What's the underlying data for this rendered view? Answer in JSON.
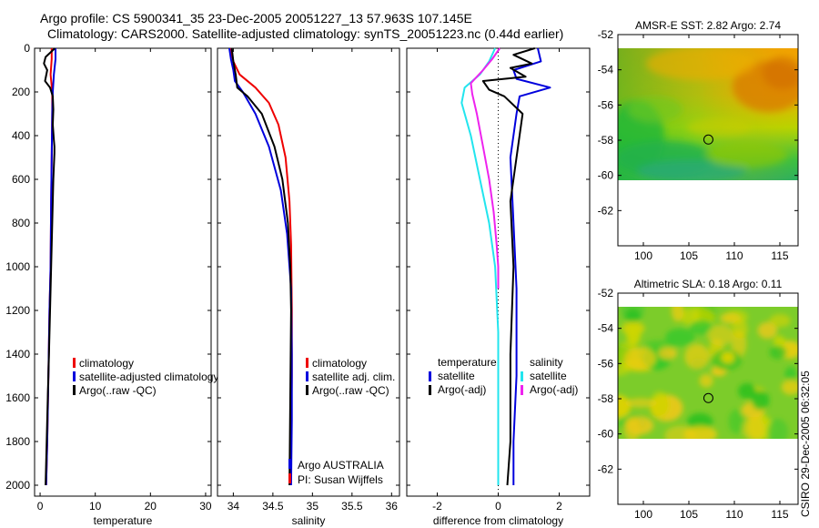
{
  "title_line1": "Argo profile: CS 5900341_35 23-Dec-2005 20051227_13 57.963S 107.145E",
  "title_line2": "Climatology: CARS2000. Satellite-adjusted climatology: synTS_20051223.nc (0.44d earlier)",
  "side_label": "CSIRO 29-Dec-2005 06:32:05",
  "colors": {
    "red": "#ee0000",
    "blue": "#0000dd",
    "black": "#000000",
    "cyan": "#22e5ee",
    "magenta": "#ee22ee"
  },
  "chart_data": [
    {
      "type": "line",
      "xlabel": "temperature",
      "xlim": [
        -1,
        31
      ],
      "ylim": [
        0,
        2050
      ],
      "y_reversed": true,
      "xticks": [
        0,
        10,
        20,
        30
      ],
      "yticks": [
        0,
        200,
        400,
        600,
        800,
        1000,
        1200,
        1400,
        1600,
        1800,
        2000
      ],
      "legend": [
        "climatology",
        "satellite-adjusted climatology",
        "Argo(..raw -QC)"
      ],
      "series": [
        {
          "name": "climatology",
          "color": "red",
          "x": [
            2.1,
            2.1,
            1.9,
            2.2,
            2.2,
            2.1,
            2.0,
            1.9,
            1.7,
            1.5,
            1.3,
            1.1
          ],
          "y": [
            0,
            50,
            120,
            200,
            300,
            500,
            700,
            1000,
            1200,
            1500,
            1800,
            2000
          ]
        },
        {
          "name": "satellite-adjusted climatology",
          "color": "blue",
          "x": [
            2.8,
            2.8,
            2.5,
            2.3,
            2.2,
            2.1,
            2.0,
            1.9,
            1.7,
            1.5,
            1.3,
            1.1
          ],
          "y": [
            0,
            50,
            120,
            200,
            300,
            500,
            700,
            1000,
            1200,
            1500,
            1800,
            2000
          ]
        },
        {
          "name": "Argo(..raw -QC)",
          "color": "black",
          "x": [
            2.7,
            1.0,
            0.7,
            1.3,
            0.9,
            1.8,
            2.3,
            2.4,
            2.3,
            2.5,
            2.6,
            2.6,
            2.4,
            2.2,
            2.0,
            1.8,
            1.6,
            1.4,
            1.2,
            1.0
          ],
          "y": [
            0,
            40,
            70,
            100,
            150,
            180,
            220,
            280,
            350,
            420,
            450,
            480,
            600,
            800,
            1000,
            1200,
            1400,
            1600,
            1800,
            2000
          ]
        }
      ]
    },
    {
      "type": "line",
      "xlabel": "salinity",
      "xlim": [
        33.8,
        36.1
      ],
      "ylim": [
        0,
        2050
      ],
      "y_reversed": true,
      "xticks": [
        34,
        34.5,
        35,
        35.5,
        36
      ],
      "legend": [
        "climatology",
        "satellite adj. clim.",
        "Argo(..raw -QC)"
      ],
      "annotations": [
        "Argo AUSTRALIA",
        "PI: Susan Wijffels"
      ],
      "series": [
        {
          "name": "climatology",
          "color": "red",
          "x": [
            33.96,
            34.0,
            34.08,
            34.28,
            34.45,
            34.57,
            34.66,
            34.71,
            34.73,
            34.74,
            34.74,
            34.73,
            34.72
          ],
          "y": [
            0,
            60,
            120,
            180,
            250,
            350,
            500,
            700,
            900,
            1200,
            1500,
            1800,
            2000
          ]
        },
        {
          "name": "satellite adj. clim.",
          "color": "blue",
          "x": [
            33.95,
            33.97,
            34.0,
            34.02,
            34.12,
            34.28,
            34.45,
            34.6,
            34.68,
            34.73,
            34.74,
            34.74,
            34.73
          ],
          "y": [
            0,
            50,
            100,
            150,
            200,
            300,
            450,
            650,
            850,
            1100,
            1400,
            1700,
            2000
          ]
        },
        {
          "name": "Argo(..raw -QC)",
          "color": "black",
          "x": [
            33.98,
            34.0,
            34.03,
            34.05,
            34.18,
            34.36,
            34.52,
            34.62,
            34.69,
            34.72,
            34.73,
            34.72,
            34.71
          ],
          "y": [
            0,
            60,
            120,
            180,
            220,
            300,
            450,
            600,
            800,
            1000,
            1200,
            1600,
            2000
          ]
        }
      ]
    },
    {
      "type": "line",
      "xlabel": "difference from climatology",
      "xlim": [
        -3,
        3
      ],
      "ylim": [
        0,
        2050
      ],
      "y_reversed": true,
      "xticks": [
        -2,
        0,
        2
      ],
      "legend_temperature": {
        "header": "temperature",
        "items": [
          "satellite",
          "Argo(-adj)"
        ]
      },
      "legend_salinity": {
        "header": "salinity",
        "items": [
          "satellite",
          "Argo(-adj)"
        ]
      },
      "zero_line": true,
      "series": [
        {
          "name": "temperature satellite",
          "color": "blue",
          "x": [
            1.3,
            1.4,
            0.5,
            0.6,
            1.7,
            0.7,
            0.6,
            0.4,
            0.5,
            0.6,
            0.6,
            0.5,
            0.5
          ],
          "y": [
            0,
            60,
            100,
            140,
            180,
            220,
            300,
            500,
            800,
            1100,
            1500,
            1800,
            2000
          ]
        },
        {
          "name": "temperature Argo(-adj)",
          "color": "black",
          "x": [
            1.2,
            0.5,
            1.1,
            0.4,
            0.9,
            -0.5,
            -0.3,
            0.2,
            0.8,
            0.6,
            0.4,
            0.5,
            0.4,
            0.4,
            0.3
          ],
          "y": [
            0,
            30,
            70,
            90,
            130,
            150,
            190,
            220,
            300,
            500,
            700,
            1000,
            1400,
            1800,
            2000
          ]
        },
        {
          "name": "salinity satellite",
          "color": "cyan",
          "x": [
            -0.1,
            -0.3,
            -0.6,
            -1.1,
            -1.2,
            -0.9,
            -0.6,
            -0.3,
            -0.1,
            0,
            0,
            0
          ],
          "y": [
            0,
            60,
            120,
            180,
            250,
            400,
            600,
            800,
            1000,
            1300,
            1700,
            2000
          ]
        },
        {
          "name": "salinity Argo(-adj)",
          "color": "magenta",
          "x": [
            0.05,
            -0.2,
            -0.5,
            -0.9,
            -0.85,
            -0.7,
            -0.5,
            -0.3,
            -0.15,
            -0.05,
            0,
            0
          ],
          "y": [
            0,
            50,
            100,
            160,
            210,
            300,
            450,
            600,
            750,
            900,
            1000,
            1100
          ]
        }
      ]
    },
    {
      "type": "heatmap",
      "title": "AMSR-E SST: 2.82 Argo: 2.74",
      "xlim": [
        97.2,
        117.0
      ],
      "ylim": [
        -64,
        -52
      ],
      "xticks": [
        100,
        105,
        110,
        115
      ],
      "yticks": [
        -52,
        -54,
        -56,
        -58,
        -60,
        -62
      ],
      "data_ylim": [
        -60,
        -52
      ],
      "float_position": [
        107.145,
        -57.963
      ]
    },
    {
      "type": "heatmap",
      "title": "Altimetric SLA: 0.18 Argo: 0.11",
      "xlim": [
        97.2,
        117.0
      ],
      "ylim": [
        -64,
        -52
      ],
      "xticks": [
        100,
        105,
        110,
        115
      ],
      "yticks": [
        -52,
        -54,
        -56,
        -58,
        -60,
        -62
      ],
      "data_ylim": [
        -60,
        -52
      ],
      "float_position": [
        107.145,
        -57.963
      ]
    }
  ]
}
